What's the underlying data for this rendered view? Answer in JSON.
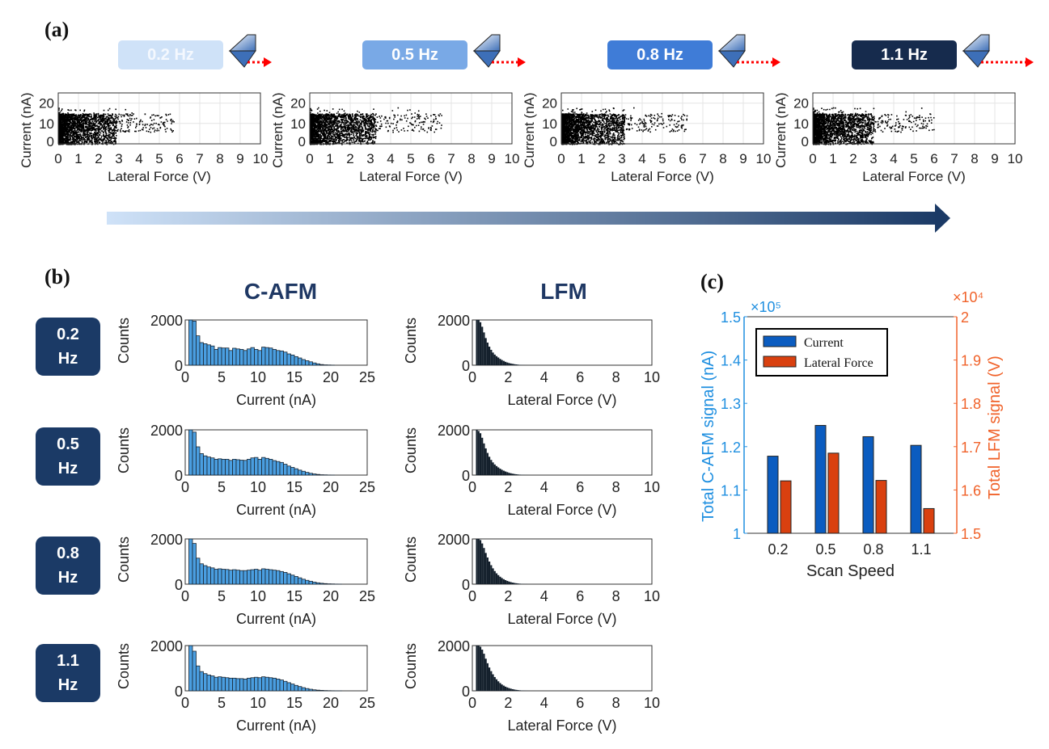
{
  "panel_labels": {
    "a": "(a)",
    "b": "(b)",
    "c": "(c)"
  },
  "speeds": [
    {
      "label": "0.2 Hz",
      "value": "0.2",
      "unit": "Hz",
      "color": "#cfe2f8"
    },
    {
      "label": "0.5 Hz",
      "value": "0.5",
      "unit": "Hz",
      "color": "#79a9e6"
    },
    {
      "label": "0.8 Hz",
      "value": "0.8",
      "unit": "Hz",
      "color": "#3f7cd7"
    },
    {
      "label": "1.1 Hz",
      "value": "1.1",
      "unit": "Hz",
      "color": "#162b4d"
    }
  ],
  "column_titles": {
    "cafm": "C-AFM",
    "lfm": "LFM"
  },
  "chart_data": [
    {
      "type": "scatter",
      "panel": "a",
      "xlabel": "Lateral Force (V)",
      "ylabel": "Current (nA)",
      "xlim": [
        0,
        10
      ],
      "ylim": [
        0,
        25
      ],
      "xticks": [
        0,
        1,
        2,
        3,
        4,
        5,
        6,
        7,
        8,
        9,
        10
      ],
      "yticks": [
        0,
        10,
        20
      ],
      "grid": true,
      "series": [
        {
          "name": "0.2 Hz",
          "max_lateral_force": 5.7
        },
        {
          "name": "0.5 Hz",
          "max_lateral_force": 6.5
        },
        {
          "name": "0.8 Hz",
          "max_lateral_force": 6.2
        },
        {
          "name": "1.1 Hz",
          "max_lateral_force": 6.0
        }
      ]
    },
    {
      "type": "bar",
      "panel": "b",
      "subtype": "histogram",
      "title": "C-AFM",
      "xlabel": "Current (nA)",
      "ylabel": "Counts",
      "xlim": [
        0,
        25
      ],
      "ylim": [
        0,
        2000
      ],
      "xticks": [
        0,
        5,
        10,
        15,
        20,
        25
      ],
      "yticks": [
        0,
        2000
      ],
      "bin_start": 0.5,
      "bin_width": 0.5,
      "color": "#4a9ee0",
      "series": [
        {
          "name": "0.2 Hz",
          "values": [
            2000,
            1950,
            1300,
            1000,
            950,
            900,
            850,
            700,
            780,
            760,
            760,
            650,
            750,
            720,
            700,
            650,
            720,
            780,
            700,
            650,
            800,
            780,
            760,
            700,
            650,
            630,
            580,
            500,
            450,
            380,
            320,
            250,
            200,
            150,
            100,
            60,
            30,
            15,
            10,
            5
          ]
        },
        {
          "name": "0.5 Hz",
          "values": [
            2000,
            1900,
            1250,
            950,
            850,
            800,
            760,
            700,
            720,
            700,
            700,
            650,
            700,
            680,
            660,
            650,
            700,
            760,
            780,
            700,
            780,
            740,
            700,
            640,
            600,
            560,
            480,
            400,
            340,
            280,
            220,
            170,
            120,
            80,
            50,
            30,
            15,
            10,
            5,
            3
          ]
        },
        {
          "name": "0.8 Hz",
          "values": [
            2000,
            1800,
            1150,
            900,
            820,
            760,
            720,
            660,
            680,
            660,
            650,
            620,
            640,
            620,
            600,
            600,
            620,
            640,
            660,
            620,
            680,
            660,
            640,
            620,
            600,
            560,
            520,
            460,
            400,
            340,
            280,
            220,
            170,
            130,
            90,
            60,
            40,
            25,
            15,
            10,
            5,
            3
          ]
        },
        {
          "name": "1.1 Hz",
          "values": [
            2000,
            1750,
            1100,
            850,
            760,
            700,
            660,
            600,
            620,
            600,
            580,
            560,
            560,
            540,
            540,
            520,
            560,
            580,
            600,
            580,
            620,
            600,
            580,
            560,
            520,
            480,
            420,
            360,
            300,
            240,
            190,
            140,
            100,
            70,
            45,
            30,
            20,
            12,
            8,
            5,
            3,
            2
          ]
        }
      ]
    },
    {
      "type": "bar",
      "panel": "b",
      "subtype": "histogram",
      "title": "LFM",
      "xlabel": "Lateral Force (V)",
      "ylabel": "Counts",
      "xlim": [
        0,
        10
      ],
      "ylim": [
        0,
        2000
      ],
      "xticks": [
        0,
        2,
        4,
        6,
        8,
        10
      ],
      "yticks": [
        0,
        2000
      ],
      "bin_start": 0.2,
      "bin_width": 0.1,
      "color": "#14202c",
      "series": [
        {
          "name": "0.2 Hz",
          "values": [
            2000,
            2000,
            1900,
            1700,
            1450,
            1200,
            1000,
            820,
            680,
            560,
            470,
            400,
            340,
            280,
            230,
            190,
            150,
            120,
            95,
            75,
            60,
            45,
            35,
            25,
            18,
            12,
            8,
            5,
            3,
            2
          ]
        },
        {
          "name": "0.5 Hz",
          "values": [
            2000,
            1950,
            1850,
            1650,
            1400,
            1180,
            980,
            810,
            670,
            560,
            470,
            400,
            340,
            285,
            235,
            195,
            160,
            130,
            100,
            80,
            62,
            48,
            37,
            27,
            20,
            14,
            9,
            6,
            4,
            2
          ]
        },
        {
          "name": "0.8 Hz",
          "values": [
            2000,
            2000,
            1950,
            1800,
            1600,
            1380,
            1180,
            1000,
            840,
            700,
            580,
            480,
            400,
            330,
            270,
            220,
            180,
            145,
            115,
            90,
            70,
            54,
            41,
            30,
            22,
            15,
            10,
            6,
            4,
            2
          ]
        },
        {
          "name": "1.1 Hz",
          "values": [
            2000,
            2000,
            1950,
            1820,
            1640,
            1420,
            1220,
            1030,
            870,
            730,
            610,
            510,
            420,
            345,
            280,
            230,
            185,
            150,
            120,
            95,
            74,
            57,
            43,
            32,
            23,
            16,
            11,
            7,
            4,
            2
          ]
        }
      ]
    },
    {
      "type": "bar",
      "panel": "c",
      "categories": [
        "0.2",
        "0.5",
        "0.8",
        "1.1"
      ],
      "xlabel": "Scan Speed",
      "ylabel": "Total C-AFM signal (nA)",
      "ylabel_right": "Total LFM signal (V)",
      "ylim": [
        1,
        1.5
      ],
      "ylim_right": [
        1.5,
        2
      ],
      "yticks": [
        "1",
        "1.1",
        "1.2",
        "1.3",
        "1.4",
        "1.5"
      ],
      "yticks_right": [
        "1.5",
        "1.6",
        "1.7",
        "1.8",
        "1.9",
        "2"
      ],
      "y_multiplier": "×10⁵",
      "y_multiplier_right": "×10⁴",
      "legend_position": "top-left",
      "series": [
        {
          "name": "Current",
          "axis": "left",
          "color": "#0b5cc0",
          "values": [
            1.178,
            1.249,
            1.223,
            1.203
          ]
        },
        {
          "name": "Lateral Force",
          "axis": "right",
          "color": "#d9400f",
          "values": [
            1.621,
            1.685,
            1.622,
            1.557
          ]
        }
      ],
      "left_axis_color": "#1f8fe0",
      "right_axis_color": "#f0622a"
    }
  ]
}
